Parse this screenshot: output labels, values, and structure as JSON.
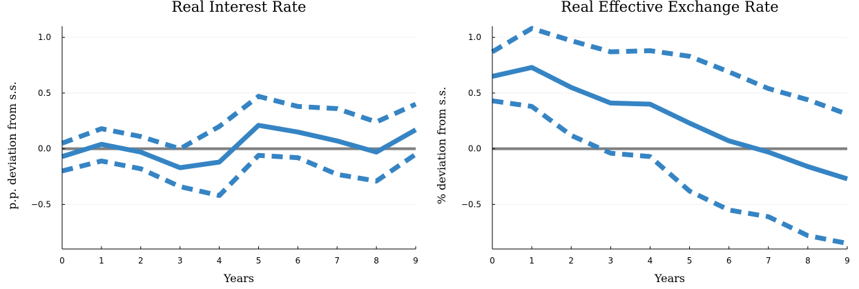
{
  "chart_data": [
    {
      "type": "line",
      "title": "Real Interest Rate",
      "xlabel": "Years",
      "ylabel": "p.p. deviation from s.s.",
      "x": [
        0,
        1,
        2,
        3,
        4,
        5,
        6,
        7,
        8,
        9
      ],
      "xlim": [
        0,
        9
      ],
      "ylim": [
        -0.9,
        1.1
      ],
      "xticks": [
        "0",
        "1",
        "2",
        "3",
        "4",
        "5",
        "6",
        "7",
        "8",
        "9"
      ],
      "yticks": [
        "−0.5",
        "0.0",
        "0.5",
        "1.0"
      ],
      "ytick_values": [
        -0.5,
        0.0,
        0.5,
        1.0
      ],
      "grid": true,
      "zero_line": 0,
      "series": [
        {
          "style": "solid",
          "color": "#3584c4",
          "values": [
            -0.07,
            0.04,
            -0.03,
            -0.17,
            -0.12,
            0.21,
            0.15,
            0.07,
            -0.03,
            0.17
          ]
        },
        {
          "style": "dashed",
          "color": "#3584c4",
          "values": [
            0.05,
            0.18,
            0.11,
            0.0,
            0.2,
            0.47,
            0.38,
            0.36,
            0.24,
            0.4
          ]
        },
        {
          "style": "dashed",
          "color": "#3584c4",
          "values": [
            -0.2,
            -0.11,
            -0.18,
            -0.34,
            -0.42,
            -0.06,
            -0.08,
            -0.23,
            -0.29,
            -0.05
          ]
        }
      ]
    },
    {
      "type": "line",
      "title": "Real Effective Exchange Rate",
      "xlabel": "Years",
      "ylabel": "% deviation from s.s.",
      "x": [
        0,
        1,
        2,
        3,
        4,
        5,
        6,
        7,
        8,
        9
      ],
      "xlim": [
        0,
        9
      ],
      "ylim": [
        -0.9,
        1.1
      ],
      "xticks": [
        "0",
        "1",
        "2",
        "3",
        "4",
        "5",
        "6",
        "7",
        "8",
        "9"
      ],
      "yticks": [
        "−0.5",
        "0.0",
        "0.5",
        "1.0"
      ],
      "ytick_values": [
        -0.5,
        0.0,
        0.5,
        1.0
      ],
      "grid": true,
      "zero_line": 0,
      "series": [
        {
          "style": "solid",
          "color": "#3584c4",
          "values": [
            0.65,
            0.73,
            0.55,
            0.41,
            0.4,
            0.23,
            0.07,
            -0.03,
            -0.16,
            -0.27
          ]
        },
        {
          "style": "dashed",
          "color": "#3584c4",
          "values": [
            0.87,
            1.08,
            0.97,
            0.87,
            0.88,
            0.83,
            0.69,
            0.54,
            0.44,
            0.31
          ]
        },
        {
          "style": "dashed",
          "color": "#3584c4",
          "values": [
            0.43,
            0.38,
            0.12,
            -0.04,
            -0.07,
            -0.38,
            -0.55,
            -0.61,
            -0.78,
            -0.85
          ]
        }
      ]
    }
  ],
  "colors": {
    "series": "#3584c4",
    "zero_line": "#808080",
    "axis": "#000000",
    "grid": "#efefef"
  }
}
